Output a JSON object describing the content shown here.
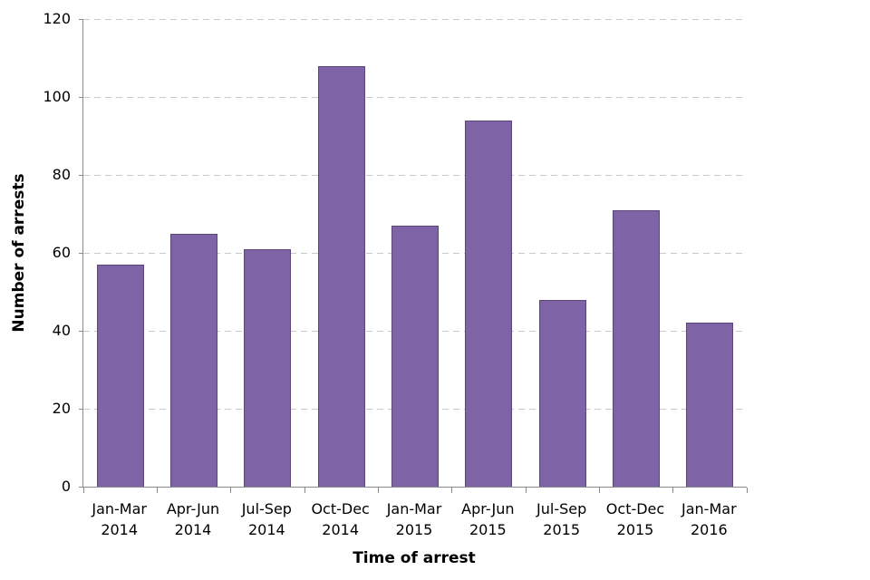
{
  "chart_data": {
    "type": "bar",
    "xlabel": "Time of arrest",
    "ylabel": "Number of arrests",
    "categories": [
      {
        "quarter": "Jan-Mar",
        "year": "2014"
      },
      {
        "quarter": "Apr-Jun",
        "year": "2014"
      },
      {
        "quarter": "Jul-Sep",
        "year": "2014"
      },
      {
        "quarter": "Oct-Dec",
        "year": "2014"
      },
      {
        "quarter": "Jan-Mar",
        "year": "2015"
      },
      {
        "quarter": "Apr-Jun",
        "year": "2015"
      },
      {
        "quarter": "Jul-Sep",
        "year": "2015"
      },
      {
        "quarter": "Oct-Dec",
        "year": "2015"
      },
      {
        "quarter": "Jan-Mar",
        "year": "2016"
      }
    ],
    "values": [
      57,
      65,
      61,
      108,
      67,
      94,
      48,
      71,
      42
    ],
    "ylim": [
      0,
      120
    ],
    "yticks": [
      0,
      20,
      40,
      60,
      80,
      100,
      120
    ],
    "grid": "horizontal-dashed",
    "legend": "none",
    "colors": {
      "bar_fill": "#7E64A6",
      "bar_border": "#5C4677",
      "axis": "#898989",
      "gridline": "#C9C9C9",
      "text": "#000000",
      "background": "#FFFFFF"
    }
  }
}
